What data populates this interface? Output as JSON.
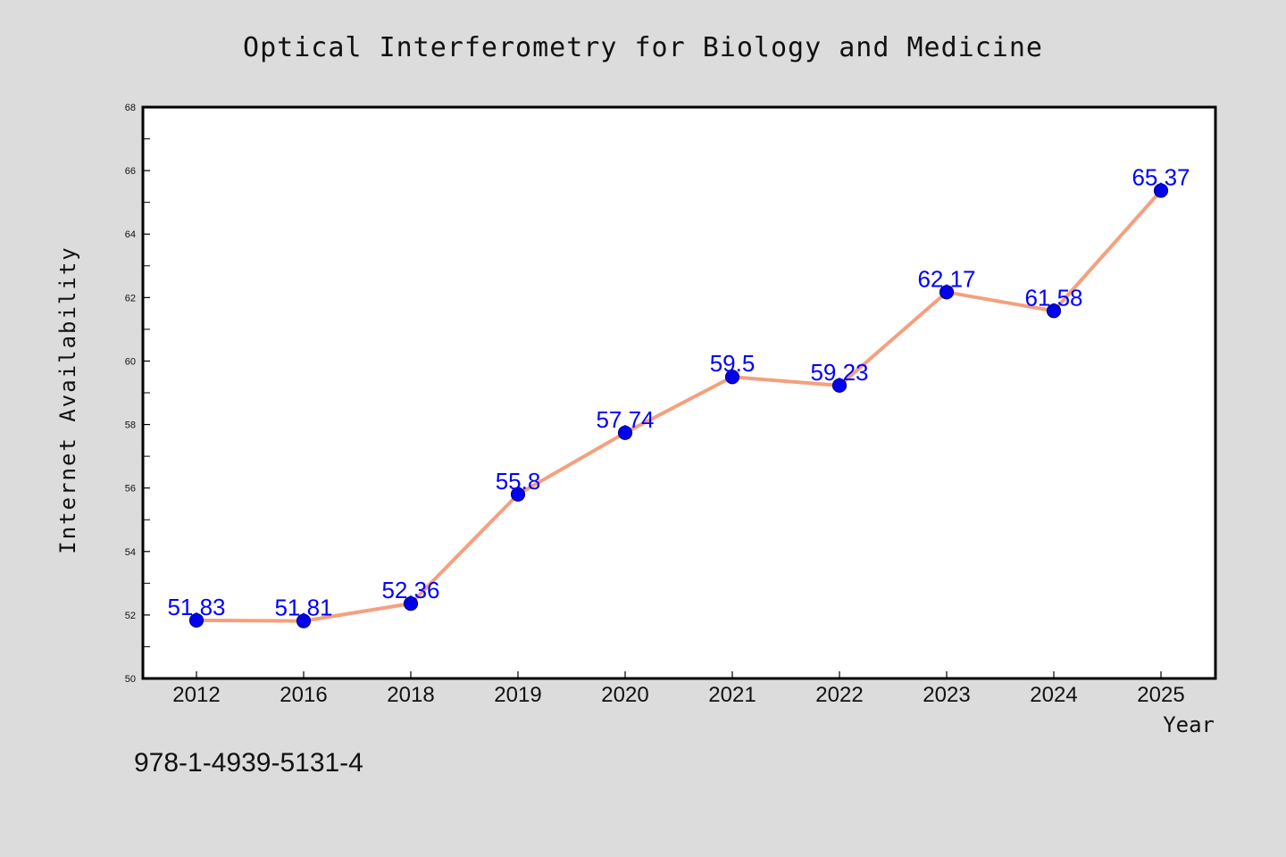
{
  "page": {
    "footer_text": "978-1-4939-5131-4"
  },
  "colors": {
    "background": "#dcdcdc",
    "plot_background": "#ffffff",
    "line": "#f4a07e",
    "marker": "#0000ee",
    "marker_edge": "#00008b",
    "data_label": "#0000ff"
  },
  "chart_data": {
    "type": "line",
    "title": "Optical Interferometry for Biology and Medicine",
    "xlabel": "Year",
    "ylabel": "Internet Availability",
    "categories": [
      "2012",
      "2016",
      "2018",
      "2019",
      "2020",
      "2021",
      "2022",
      "2023",
      "2024",
      "2025"
    ],
    "series": [
      {
        "values": [
          51.83,
          51.81,
          52.36,
          55.8,
          57.74,
          59.5,
          59.23,
          62.17,
          61.58,
          65.37
        ],
        "data_labels": [
          "51.83",
          "51.81",
          "52.36",
          "55.8",
          "57.74",
          "59.5",
          "59.23",
          "62.17",
          "61.58",
          "65.37"
        ]
      }
    ],
    "ylim": [
      50,
      68
    ],
    "yticks": [
      "50",
      "52",
      "54",
      "56",
      "58",
      "60",
      "62",
      "64",
      "66",
      "68"
    ],
    "grid": false,
    "legend": "none"
  }
}
